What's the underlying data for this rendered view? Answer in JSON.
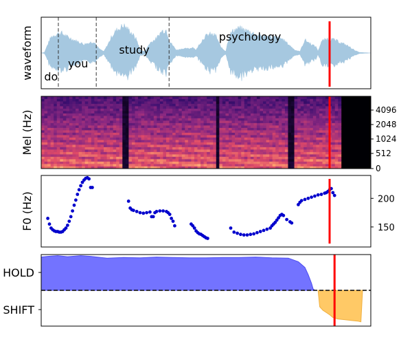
{
  "chart_data": [
    {
      "type": "area",
      "panel": "waveform",
      "ylabel": "waveform",
      "xlim": [
        0,
        1
      ],
      "words": [
        {
          "text": "do",
          "t": 0.005
        },
        {
          "text": "you",
          "t": 0.077
        },
        {
          "text": "study",
          "t": 0.232
        },
        {
          "text": "psychology",
          "t": 0.535
        }
      ],
      "word_boundaries": [
        0.052,
        0.167,
        0.388
      ],
      "envelope": [
        [
          0.0,
          0.0
        ],
        [
          0.01,
          0.02
        ],
        [
          0.02,
          0.3
        ],
        [
          0.03,
          0.55
        ],
        [
          0.045,
          0.65
        ],
        [
          0.06,
          0.7
        ],
        [
          0.08,
          0.55
        ],
        [
          0.1,
          0.45
        ],
        [
          0.13,
          0.3
        ],
        [
          0.16,
          0.4
        ],
        [
          0.175,
          0.15
        ],
        [
          0.19,
          0.05
        ],
        [
          0.205,
          0.35
        ],
        [
          0.215,
          0.6
        ],
        [
          0.23,
          0.8
        ],
        [
          0.25,
          0.95
        ],
        [
          0.27,
          0.75
        ],
        [
          0.29,
          0.45
        ],
        [
          0.3,
          0.1
        ],
        [
          0.315,
          0.05
        ],
        [
          0.33,
          0.35
        ],
        [
          0.35,
          0.5
        ],
        [
          0.365,
          0.75
        ],
        [
          0.38,
          0.8
        ],
        [
          0.39,
          0.4
        ],
        [
          0.41,
          0.1
        ],
        [
          0.43,
          0.15
        ],
        [
          0.45,
          0.15
        ],
        [
          0.46,
          0.2
        ],
        [
          0.47,
          0.1
        ],
        [
          0.48,
          0.3
        ],
        [
          0.495,
          0.55
        ],
        [
          0.51,
          0.65
        ],
        [
          0.53,
          0.6
        ],
        [
          0.545,
          0.2
        ],
        [
          0.56,
          0.05
        ],
        [
          0.57,
          0.6
        ],
        [
          0.585,
          0.8
        ],
        [
          0.6,
          0.85
        ],
        [
          0.63,
          0.75
        ],
        [
          0.66,
          0.6
        ],
        [
          0.7,
          0.55
        ],
        [
          0.73,
          0.5
        ],
        [
          0.75,
          0.3
        ],
        [
          0.77,
          0.1
        ],
        [
          0.785,
          0.05
        ],
        [
          0.8,
          0.45
        ],
        [
          0.82,
          0.3
        ],
        [
          0.835,
          0.2
        ],
        [
          0.84,
          0.05
        ],
        [
          0.85,
          0.4
        ],
        [
          0.87,
          0.5
        ],
        [
          0.89,
          0.45
        ],
        [
          0.91,
          0.35
        ],
        [
          0.93,
          0.25
        ],
        [
          0.95,
          0.1
        ],
        [
          0.965,
          0.02
        ],
        [
          1.0,
          0.0
        ]
      ],
      "cursor_t": 0.875,
      "colors": {
        "wave": "#a6c8e0",
        "cursor": "#ff0000",
        "boundary": "#333333"
      }
    },
    {
      "type": "heatmap",
      "panel": "mel-spectrogram",
      "ylabel": "Mel (Hz)",
      "yticks": [
        "0",
        "512",
        "1024",
        "2048",
        "4096"
      ],
      "silent_after_t": 0.91,
      "gaps": [
        [
          0.245,
          0.262
        ],
        [
          0.53,
          0.545
        ],
        [
          0.75,
          0.765
        ]
      ],
      "cursor_t": 0.875,
      "colormap": [
        "#000004",
        "#3b0f70",
        "#8c2981",
        "#de4968",
        "#fe9f6d",
        "#fcfdbf"
      ]
    },
    {
      "type": "scatter",
      "panel": "f0",
      "ylabel": "F0 (Hz)",
      "yticks": [
        "150",
        "200"
      ],
      "ylim": [
        115,
        240
      ],
      "points": [
        [
          0.02,
          165
        ],
        [
          0.025,
          155
        ],
        [
          0.03,
          148
        ],
        [
          0.035,
          145
        ],
        [
          0.04,
          143
        ],
        [
          0.045,
          142
        ],
        [
          0.05,
          142
        ],
        [
          0.055,
          141
        ],
        [
          0.06,
          141
        ],
        [
          0.065,
          142
        ],
        [
          0.07,
          145
        ],
        [
          0.075,
          148
        ],
        [
          0.08,
          153
        ],
        [
          0.085,
          160
        ],
        [
          0.09,
          168
        ],
        [
          0.095,
          178
        ],
        [
          0.1,
          188
        ],
        [
          0.105,
          197
        ],
        [
          0.11,
          207
        ],
        [
          0.115,
          215
        ],
        [
          0.12,
          222
        ],
        [
          0.125,
          228
        ],
        [
          0.13,
          232
        ],
        [
          0.135,
          235
        ],
        [
          0.14,
          236
        ],
        [
          0.145,
          234
        ],
        [
          0.15,
          219
        ],
        [
          0.155,
          219
        ],
        [
          0.265,
          195
        ],
        [
          0.27,
          183
        ],
        [
          0.275,
          180
        ],
        [
          0.28,
          179
        ],
        [
          0.29,
          177
        ],
        [
          0.3,
          175
        ],
        [
          0.31,
          174
        ],
        [
          0.32,
          175
        ],
        [
          0.33,
          176
        ],
        [
          0.335,
          168
        ],
        [
          0.34,
          168
        ],
        [
          0.345,
          175
        ],
        [
          0.35,
          177
        ],
        [
          0.36,
          178
        ],
        [
          0.37,
          178
        ],
        [
          0.38,
          177
        ],
        [
          0.385,
          175
        ],
        [
          0.39,
          172
        ],
        [
          0.395,
          165
        ],
        [
          0.4,
          160
        ],
        [
          0.405,
          152
        ],
        [
          0.455,
          155
        ],
        [
          0.46,
          152
        ],
        [
          0.465,
          148
        ],
        [
          0.47,
          143
        ],
        [
          0.475,
          140
        ],
        [
          0.48,
          138
        ],
        [
          0.485,
          137
        ],
        [
          0.49,
          135
        ],
        [
          0.495,
          133
        ],
        [
          0.5,
          131
        ],
        [
          0.505,
          130
        ],
        [
          0.575,
          148
        ],
        [
          0.585,
          141
        ],
        [
          0.595,
          139
        ],
        [
          0.605,
          137
        ],
        [
          0.615,
          136
        ],
        [
          0.625,
          136
        ],
        [
          0.635,
          137
        ],
        [
          0.645,
          138
        ],
        [
          0.655,
          140
        ],
        [
          0.665,
          142
        ],
        [
          0.675,
          144
        ],
        [
          0.685,
          146
        ],
        [
          0.695,
          148
        ],
        [
          0.7,
          152
        ],
        [
          0.705,
          155
        ],
        [
          0.71,
          158
        ],
        [
          0.715,
          162
        ],
        [
          0.72,
          166
        ],
        [
          0.725,
          170
        ],
        [
          0.73,
          172
        ],
        [
          0.735,
          170
        ],
        [
          0.745,
          163
        ],
        [
          0.755,
          159
        ],
        [
          0.76,
          157
        ],
        [
          0.78,
          189
        ],
        [
          0.785,
          193
        ],
        [
          0.79,
          196
        ],
        [
          0.8,
          198
        ],
        [
          0.81,
          200
        ],
        [
          0.82,
          202
        ],
        [
          0.83,
          204
        ],
        [
          0.84,
          206
        ],
        [
          0.85,
          207
        ],
        [
          0.86,
          209
        ],
        [
          0.865,
          210
        ],
        [
          0.87,
          212
        ],
        [
          0.875,
          215
        ],
        [
          0.88,
          217
        ],
        [
          0.885,
          210
        ],
        [
          0.89,
          205
        ]
      ],
      "cursor_t": 0.875,
      "colors": {
        "points": "#0000cc",
        "cursor": "#ff0000"
      }
    },
    {
      "type": "area",
      "panel": "turn-taking",
      "ytick_labels": [
        "HOLD",
        "SHIFT"
      ],
      "hold": [
        [
          0.0,
          0.965
        ],
        [
          0.02,
          0.975
        ],
        [
          0.05,
          0.985
        ],
        [
          0.08,
          0.97
        ],
        [
          0.12,
          0.985
        ],
        [
          0.15,
          0.975
        ],
        [
          0.2,
          0.95
        ],
        [
          0.25,
          0.96
        ],
        [
          0.3,
          0.955
        ],
        [
          0.35,
          0.965
        ],
        [
          0.4,
          0.96
        ],
        [
          0.45,
          0.955
        ],
        [
          0.5,
          0.955
        ],
        [
          0.55,
          0.96
        ],
        [
          0.6,
          0.96
        ],
        [
          0.65,
          0.965
        ],
        [
          0.7,
          0.955
        ],
        [
          0.75,
          0.95
        ],
        [
          0.78,
          0.9
        ],
        [
          0.8,
          0.82
        ],
        [
          0.81,
          0.72
        ],
        [
          0.82,
          0.6
        ],
        [
          0.825,
          0.52
        ],
        [
          0.83,
          0.5
        ]
      ],
      "shift": [
        [
          0.84,
          0.5
        ],
        [
          0.845,
          0.27
        ],
        [
          0.855,
          0.22
        ],
        [
          0.865,
          0.19
        ],
        [
          0.875,
          0.16
        ],
        [
          0.885,
          0.12
        ],
        [
          0.9,
          0.1
        ],
        [
          0.92,
          0.09
        ],
        [
          0.94,
          0.08
        ],
        [
          0.96,
          0.07
        ],
        [
          0.97,
          0.06
        ],
        [
          0.975,
          0.5
        ]
      ],
      "threshold": 0.5,
      "cursor_t": 0.89,
      "colors": {
        "hold": "#6b6bff",
        "shift": "#ffc966",
        "cursor": "#ff0000"
      }
    }
  ]
}
